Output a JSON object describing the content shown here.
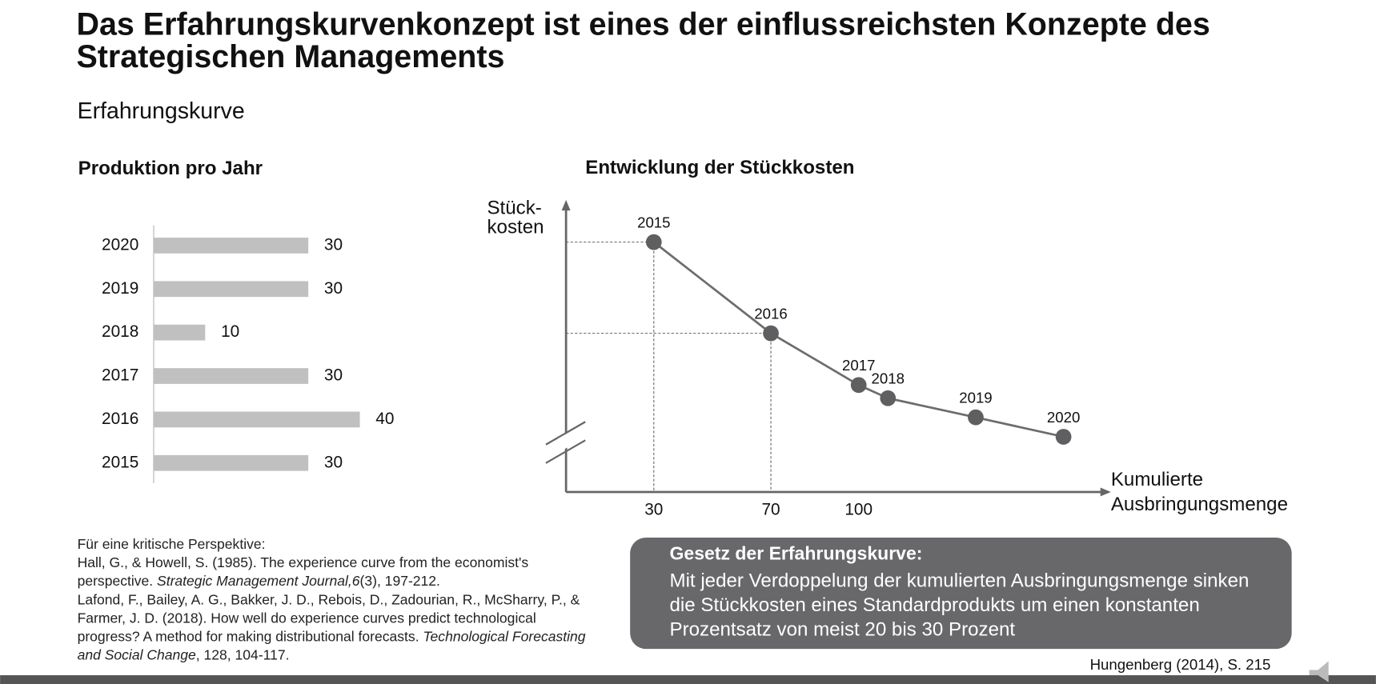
{
  "title": [
    "Das Erfahrungskurvenkonzept ist eines der einflussreichsten Konzepte des",
    "Strategischen Managements"
  ],
  "subtitle": "Erfahrungskurve",
  "chart_data": [
    {
      "type": "bar",
      "orientation": "horizontal",
      "title": "Produktion pro Jahr",
      "categories": [
        "2020",
        "2019",
        "2018",
        "2017",
        "2016",
        "2015"
      ],
      "values": [
        30,
        30,
        10,
        30,
        40,
        30
      ],
      "color": "#c0c0c0",
      "xlim": [
        0,
        40
      ]
    },
    {
      "type": "line",
      "title": "Entwicklung der Stückkosten",
      "ylabel": [
        "Stück-",
        "kosten"
      ],
      "xlabel": [
        "Kumulierte",
        "Ausbringungsmenge"
      ],
      "x": [
        30,
        70,
        100,
        110,
        140,
        170
      ],
      "values": [
        87.4,
        55.5,
        37.4,
        32.8,
        26.1,
        19.3
      ],
      "point_labels": [
        "2015",
        "2016",
        "2017",
        "2018",
        "2019",
        "2020"
      ],
      "color": "#6d6d6d",
      "xlim": [
        0,
        185
      ],
      "ylim": [
        0,
        100
      ],
      "xticks": [
        30,
        70,
        100
      ]
    }
  ],
  "references": {
    "heading": "Für eine kritische Perspektive:",
    "items": [
      {
        "text": "Hall, G., & Howell, S. (1985). The experience curve from the economist's perspective. ",
        "journal": "Strategic Management Journal,6",
        "rest": "(3), 197-212."
      },
      {
        "text": "Lafond, F., Bailey, A. G., Bakker, J. D., Rebois, D., Zadourian, R., McSharry, P., & Farmer, J. D. (2018). How well do experience curves predict technological progress? A method for making distributional forecasts. ",
        "journal": "Technological Forecasting and Social Change",
        "rest": ", 128, 104-117."
      }
    ]
  },
  "box": {
    "heading": "Gesetz der Erfahrungskurve:",
    "text": "Mit jeder Verdoppelung der kumulierten Ausbringungsmenge sinken die Stückkosten eines Standardprodukts um einen konstanten Prozentsatz von meist 20 bis 30 Prozent"
  },
  "source": "Hungenberg (2014), S. 215"
}
